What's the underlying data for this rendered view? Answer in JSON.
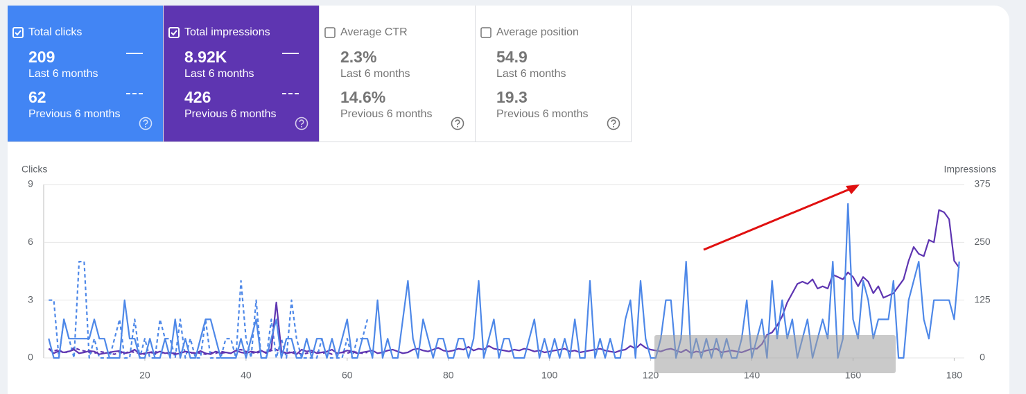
{
  "cards": [
    {
      "label": "Total clicks",
      "checked": true,
      "color": "#4285f4",
      "current": {
        "value": "209",
        "label": "Last 6 months"
      },
      "previous": {
        "value": "62",
        "label": "Previous 6 months"
      }
    },
    {
      "label": "Total impressions",
      "checked": true,
      "color": "#5e35b1",
      "current": {
        "value": "8.92K",
        "label": "Last 6 months"
      },
      "previous": {
        "value": "426",
        "label": "Previous 6 months"
      }
    },
    {
      "label": "Average CTR",
      "checked": false,
      "color": "#ffffff",
      "current": {
        "value": "2.3%",
        "label": "Last 6 months"
      },
      "previous": {
        "value": "14.6%",
        "label": "Previous 6 months"
      }
    },
    {
      "label": "Average position",
      "checked": false,
      "color": "#ffffff",
      "current": {
        "value": "54.9",
        "label": "Last 6 months"
      },
      "previous": {
        "value": "19.3",
        "label": "Previous 6 months"
      }
    }
  ],
  "chart_data": {
    "type": "line",
    "y_label": "Clicks",
    "y2_label": "Impressions",
    "xlim": [
      0,
      182
    ],
    "xticks": [
      20,
      40,
      60,
      80,
      100,
      120,
      140,
      160,
      180
    ],
    "ylim": [
      0,
      9
    ],
    "yticks": [
      0,
      3,
      6,
      9
    ],
    "y2lim": [
      0,
      375
    ],
    "y2ticks": [
      0,
      125,
      250,
      375
    ],
    "grid": true,
    "series": [
      {
        "name": "Total clicks",
        "color": "#4e88e8",
        "dashed": false,
        "x": [
          1,
          2,
          3,
          4,
          5,
          6,
          7,
          8,
          9,
          10,
          11,
          12,
          13,
          14,
          15,
          16,
          17,
          18,
          19,
          20,
          21,
          22,
          23,
          24,
          25,
          26,
          27,
          28,
          29,
          30,
          31,
          32,
          33,
          34,
          35,
          36,
          37,
          38,
          39,
          40,
          41,
          42,
          43,
          44,
          45,
          46,
          47,
          48,
          49,
          50,
          51,
          52,
          53,
          54,
          55,
          56,
          57,
          58,
          59,
          60,
          61,
          62,
          63,
          64,
          65,
          66,
          67,
          68,
          69,
          70,
          71,
          72,
          73,
          74,
          75,
          76,
          77,
          78,
          79,
          80,
          81,
          82,
          83,
          84,
          85,
          86,
          87,
          88,
          89,
          90,
          91,
          92,
          93,
          94,
          95,
          96,
          97,
          98,
          99,
          100,
          101,
          102,
          103,
          104,
          105,
          106,
          107,
          108,
          109,
          110,
          111,
          112,
          113,
          114,
          115,
          116,
          117,
          118,
          119,
          120,
          121,
          122,
          123,
          124,
          125,
          126,
          127,
          128,
          129,
          130,
          131,
          132,
          133,
          134,
          135,
          136,
          137,
          138,
          139,
          140,
          141,
          142,
          143,
          144,
          145,
          146,
          147,
          148,
          149,
          150,
          151,
          152,
          153,
          154,
          155,
          156,
          157,
          158,
          159,
          160,
          161,
          162,
          163,
          164,
          165,
          166,
          167,
          168,
          169,
          170,
          171,
          172,
          173,
          174,
          175,
          176,
          177,
          178,
          179,
          180,
          181
        ],
        "values": [
          1,
          0,
          0,
          2,
          1,
          1,
          1,
          1,
          1,
          2,
          1,
          1,
          0,
          0,
          0,
          3,
          1,
          1,
          0,
          0,
          1,
          0,
          0,
          1,
          0,
          2,
          0,
          1,
          0,
          0,
          1,
          2,
          2,
          1,
          0,
          0,
          0,
          0,
          1,
          0,
          1,
          2,
          0,
          0,
          1,
          2,
          0,
          1,
          1,
          0,
          0,
          1,
          0,
          1,
          1,
          0,
          1,
          0,
          1,
          2,
          0,
          0,
          1,
          1,
          0,
          3,
          0,
          1,
          0,
          0,
          2,
          4,
          1,
          0,
          2,
          1,
          0,
          1,
          1,
          0,
          0,
          1,
          1,
          0,
          1,
          4,
          0,
          1,
          2,
          0,
          1,
          1,
          0,
          0,
          0,
          1,
          2,
          0,
          1,
          0,
          1,
          0,
          1,
          0,
          2,
          0,
          0,
          4,
          0,
          1,
          0,
          1,
          0,
          0,
          2,
          3,
          0,
          4,
          1,
          0,
          0,
          1,
          3,
          3,
          0,
          1,
          5,
          0,
          1,
          0,
          1,
          0,
          1,
          0,
          1,
          0,
          0,
          1,
          3,
          0,
          1,
          2,
          0,
          4,
          1,
          3,
          1,
          2,
          0,
          1,
          2,
          0,
          1,
          2,
          1,
          5,
          0,
          1,
          8,
          2,
          1,
          4,
          3,
          1,
          2,
          2,
          2,
          4,
          0,
          0,
          3,
          4,
          5,
          2,
          1,
          3,
          3,
          3,
          3,
          2,
          5
        ]
      },
      {
        "name": "Total impressions",
        "color": "#5e35b1",
        "dashed": false,
        "axis": "y2",
        "x": [
          1,
          2,
          3,
          4,
          5,
          6,
          7,
          8,
          9,
          10,
          11,
          12,
          13,
          14,
          15,
          16,
          17,
          18,
          19,
          20,
          21,
          22,
          23,
          24,
          25,
          26,
          27,
          28,
          29,
          30,
          31,
          32,
          33,
          34,
          35,
          36,
          37,
          38,
          39,
          40,
          41,
          42,
          43,
          44,
          45,
          46,
          47,
          48,
          49,
          50,
          51,
          52,
          53,
          54,
          55,
          56,
          57,
          58,
          59,
          60,
          61,
          62,
          63,
          64,
          65,
          66,
          67,
          68,
          69,
          70,
          71,
          72,
          73,
          74,
          75,
          76,
          77,
          78,
          79,
          80,
          81,
          82,
          83,
          84,
          85,
          86,
          87,
          88,
          89,
          90,
          91,
          92,
          93,
          94,
          95,
          96,
          97,
          98,
          99,
          100,
          101,
          102,
          103,
          104,
          105,
          106,
          107,
          108,
          109,
          110,
          111,
          112,
          113,
          114,
          115,
          116,
          117,
          118,
          119,
          120,
          121,
          122,
          123,
          124,
          125,
          126,
          127,
          128,
          129,
          130,
          131,
          132,
          133,
          134,
          135,
          136,
          137,
          138,
          139,
          140,
          141,
          142,
          143,
          144,
          145,
          146,
          147,
          148,
          149,
          150,
          151,
          152,
          153,
          154,
          155,
          156,
          157,
          158,
          159,
          160,
          161,
          162,
          163,
          164,
          165,
          166,
          167,
          168,
          169,
          170,
          171,
          172,
          173,
          174,
          175,
          176,
          177,
          178,
          179,
          180,
          181
        ],
        "values": [
          20,
          10,
          15,
          12,
          14,
          18,
          10,
          12,
          15,
          14,
          8,
          10,
          12,
          14,
          15,
          10,
          12,
          18,
          8,
          10,
          12,
          10,
          14,
          10,
          12,
          8,
          10,
          14,
          12,
          10,
          15,
          10,
          8,
          14,
          10,
          12,
          10,
          16,
          12,
          10,
          14,
          12,
          16,
          10,
          20,
          120,
          15,
          10,
          12,
          8,
          18,
          14,
          16,
          10,
          12,
          14,
          18,
          10,
          12,
          16,
          14,
          10,
          12,
          14,
          16,
          10,
          12,
          16,
          18,
          14,
          10,
          12,
          18,
          20,
          16,
          14,
          18,
          22,
          16,
          14,
          16,
          20,
          18,
          24,
          16,
          20,
          18,
          26,
          20,
          18,
          16,
          14,
          18,
          16,
          20,
          18,
          14,
          16,
          12,
          14,
          16,
          18,
          20,
          14,
          16,
          12,
          14,
          16,
          18,
          20,
          16,
          14,
          12,
          16,
          18,
          26,
          20,
          30,
          22,
          18,
          16,
          14,
          18,
          20,
          16,
          12,
          18,
          10,
          14,
          12,
          16,
          18,
          20,
          12,
          14,
          16,
          14,
          12,
          16,
          20,
          20,
          30,
          50,
          55,
          70,
          90,
          120,
          140,
          160,
          165,
          160,
          170,
          150,
          155,
          150,
          180,
          175,
          170,
          185,
          175,
          155,
          175,
          165,
          140,
          155,
          130,
          135,
          140,
          155,
          170,
          210,
          240,
          225,
          220,
          255,
          250,
          320,
          315,
          300,
          210,
          195
        ]
      },
      {
        "name": "Previous clicks",
        "color": "#4e88e8",
        "dashed": true,
        "x": [
          1,
          2,
          3,
          4,
          5,
          6,
          7,
          8,
          9,
          10,
          11,
          12,
          13,
          14,
          15,
          16,
          17,
          18,
          19,
          20,
          21,
          22,
          23,
          24,
          25,
          26,
          27,
          28,
          29,
          30,
          31,
          32,
          33,
          34,
          35,
          36,
          37,
          38,
          39,
          40,
          41,
          42,
          43,
          44,
          45,
          46,
          47,
          48,
          49,
          50,
          51,
          52,
          53,
          54,
          55,
          56,
          57,
          58,
          59,
          60,
          61,
          62,
          63,
          64
        ],
        "values": [
          3,
          3,
          0,
          2,
          1,
          0,
          5,
          5,
          0,
          1,
          0,
          0,
          0,
          1,
          2,
          0,
          0,
          2,
          0,
          1,
          0,
          0,
          2,
          1,
          1,
          0,
          2,
          0,
          1,
          0,
          0,
          2,
          0,
          0,
          0,
          1,
          1,
          0,
          4,
          1,
          0,
          3,
          0,
          0,
          2,
          0,
          1,
          0,
          3,
          1,
          0,
          0,
          0,
          0,
          1,
          0,
          0,
          0,
          0,
          1,
          0,
          1,
          1,
          2
        ]
      },
      {
        "name": "Previous impressions",
        "color": "#5e35b1",
        "dashed": true,
        "axis": "y2",
        "x": [
          1,
          2,
          3,
          4,
          5,
          6,
          7,
          8,
          9,
          10,
          11,
          12,
          13,
          14,
          15,
          16,
          17,
          18,
          19,
          20,
          21,
          22,
          23,
          24,
          25,
          26,
          27,
          28,
          29,
          30,
          31,
          32,
          33,
          34,
          35,
          36,
          37,
          38,
          39,
          40,
          41,
          42,
          43,
          44,
          45,
          46,
          47,
          48,
          49,
          50,
          51,
          52,
          53,
          54,
          55,
          56,
          57,
          58,
          59,
          60,
          61,
          62,
          63,
          64
        ],
        "values": [
          20,
          15,
          18,
          10,
          15,
          22,
          18,
          15,
          12,
          10,
          14,
          12,
          10,
          8,
          12,
          10,
          14,
          12,
          10,
          8,
          12,
          14,
          10,
          12,
          8,
          10,
          12,
          14,
          10,
          12,
          10,
          8,
          12,
          10,
          14,
          12,
          10,
          16,
          18,
          14,
          12,
          10,
          14,
          12,
          16,
          18,
          12,
          10,
          14,
          12,
          8,
          10,
          12,
          14,
          10,
          12,
          8,
          10,
          12,
          10,
          14,
          12,
          10,
          12
        ]
      }
    ]
  }
}
